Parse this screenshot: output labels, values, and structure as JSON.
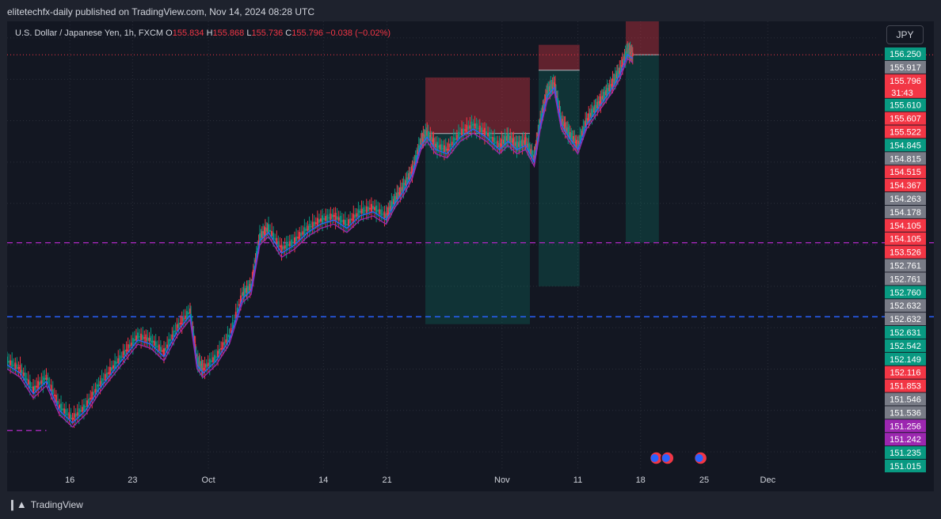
{
  "header": {
    "publisher": "elitetechfx-daily published on TradingView.com, Nov 14, 2024 08:28 UTC"
  },
  "legend": {
    "symbol": "U.S. Dollar / Japanese Yen, 1h, FXCM",
    "open_label": "O",
    "open": "155.834",
    "high_label": "H",
    "high": "155.868",
    "low_label": "L",
    "low": "155.736",
    "close_label": "C",
    "close": "155.796",
    "change": "−0.038 (−0.02%)"
  },
  "currency_button": "JPY",
  "footer": {
    "brand": "TradingView"
  },
  "colors": {
    "up": "#089981",
    "down": "#f23645",
    "purple": "#9c27b0",
    "blue": "#2962ff",
    "gray": "#787b86"
  },
  "chart_data": {
    "type": "line",
    "ylim": [
      150.8,
      156.2
    ],
    "x_ticks": [
      {
        "label": "16",
        "pos": 0.072
      },
      {
        "label": "23",
        "pos": 0.144
      },
      {
        "label": "Oct",
        "pos": 0.231
      },
      {
        "label": "14",
        "pos": 0.363
      },
      {
        "label": "21",
        "pos": 0.436
      },
      {
        "label": "Nov",
        "pos": 0.568
      },
      {
        "label": "11",
        "pos": 0.655
      },
      {
        "label": "18",
        "pos": 0.727
      },
      {
        "label": "25",
        "pos": 0.8
      },
      {
        "label": "Dec",
        "pos": 0.873
      }
    ],
    "price_series": [
      [
        0.0,
        152.1
      ],
      [
        0.015,
        152.0
      ],
      [
        0.03,
        151.75
      ],
      [
        0.045,
        151.9
      ],
      [
        0.06,
        151.55
      ],
      [
        0.075,
        151.4
      ],
      [
        0.09,
        151.55
      ],
      [
        0.105,
        151.8
      ],
      [
        0.12,
        152.0
      ],
      [
        0.135,
        152.2
      ],
      [
        0.15,
        152.4
      ],
      [
        0.165,
        152.35
      ],
      [
        0.18,
        152.2
      ],
      [
        0.195,
        152.5
      ],
      [
        0.21,
        152.7
      ],
      [
        0.218,
        152.1
      ],
      [
        0.225,
        152.0
      ],
      [
        0.24,
        152.15
      ],
      [
        0.255,
        152.4
      ],
      [
        0.27,
        152.9
      ],
      [
        0.28,
        153.0
      ],
      [
        0.29,
        153.6
      ],
      [
        0.3,
        153.7
      ],
      [
        0.315,
        153.45
      ],
      [
        0.33,
        153.55
      ],
      [
        0.345,
        153.7
      ],
      [
        0.36,
        153.8
      ],
      [
        0.375,
        153.85
      ],
      [
        0.39,
        153.75
      ],
      [
        0.405,
        153.9
      ],
      [
        0.42,
        153.95
      ],
      [
        0.435,
        153.85
      ],
      [
        0.445,
        154.05
      ],
      [
        0.455,
        154.2
      ],
      [
        0.465,
        154.4
      ],
      [
        0.475,
        154.75
      ],
      [
        0.482,
        154.85
      ],
      [
        0.492,
        154.7
      ],
      [
        0.505,
        154.65
      ],
      [
        0.52,
        154.85
      ],
      [
        0.535,
        154.95
      ],
      [
        0.55,
        154.85
      ],
      [
        0.565,
        154.7
      ],
      [
        0.575,
        154.8
      ],
      [
        0.585,
        154.7
      ],
      [
        0.595,
        154.75
      ],
      [
        0.605,
        154.55
      ],
      [
        0.612,
        155.0
      ],
      [
        0.62,
        155.35
      ],
      [
        0.628,
        155.45
      ],
      [
        0.636,
        155.0
      ],
      [
        0.645,
        154.85
      ],
      [
        0.655,
        154.7
      ],
      [
        0.665,
        155.0
      ],
      [
        0.675,
        155.15
      ],
      [
        0.685,
        155.3
      ],
      [
        0.695,
        155.45
      ],
      [
        0.703,
        155.6
      ],
      [
        0.712,
        155.85
      ],
      [
        0.718,
        155.8
      ]
    ],
    "horizontal_levels": [
      {
        "price": 155.796,
        "color": "#f23645",
        "style": "dotted"
      },
      {
        "price": 153.526,
        "color": "#9c27b0",
        "style": "dashed"
      },
      {
        "price": 152.632,
        "color": "#2962ff",
        "style": "dashed"
      },
      {
        "price": 151.256,
        "color": "#9c27b0",
        "style": "dashed",
        "x_end": 0.045
      }
    ],
    "positions": [
      {
        "x0": 0.48,
        "x1": 0.6,
        "entry": 154.845,
        "stop": 155.522,
        "target": 152.542
      },
      {
        "x0": 0.61,
        "x1": 0.657,
        "entry": 155.61,
        "stop": 155.917,
        "target": 153.0
      },
      {
        "x0": 0.71,
        "x1": 0.748,
        "entry": 155.796,
        "stop": 156.25,
        "target": 153.526
      }
    ],
    "price_labels": [
      {
        "text": "156.250",
        "color": "#089981"
      },
      {
        "text": "155.917",
        "color": "#787b86"
      },
      {
        "text": "155.796",
        "color": "#f23645",
        "sub": "31:43"
      },
      {
        "text": "155.610",
        "color": "#089981"
      },
      {
        "text": "155.607",
        "color": "#f23645"
      },
      {
        "text": "155.522",
        "color": "#f23645"
      },
      {
        "text": "154.845",
        "color": "#089981"
      },
      {
        "text": "154.815",
        "color": "#787b86"
      },
      {
        "text": "154.515",
        "color": "#f23645"
      },
      {
        "text": "154.367",
        "color": "#f23645"
      },
      {
        "text": "154.263",
        "color": "#787b86"
      },
      {
        "text": "154.178",
        "color": "#787b86"
      },
      {
        "text": "154.105",
        "color": "#f23645"
      },
      {
        "text": "154.105",
        "color": "#f23645"
      },
      {
        "text": "153.526",
        "color": "#f23645"
      },
      {
        "text": "152.761",
        "color": "#787b86"
      },
      {
        "text": "152.761",
        "color": "#787b86"
      },
      {
        "text": "152.760",
        "color": "#089981"
      },
      {
        "text": "152.632",
        "color": "#787b86"
      },
      {
        "text": "152.632",
        "color": "#787b86"
      },
      {
        "text": "152.631",
        "color": "#089981"
      },
      {
        "text": "152.542",
        "color": "#089981"
      },
      {
        "text": "152.149",
        "color": "#089981"
      },
      {
        "text": "152.116",
        "color": "#f23645"
      },
      {
        "text": "151.853",
        "color": "#f23645"
      },
      {
        "text": "151.546",
        "color": "#787b86"
      },
      {
        "text": "151.536",
        "color": "#787b86"
      },
      {
        "text": "151.256",
        "color": "#9c27b0"
      },
      {
        "text": "151.242",
        "color": "#9c27b0"
      },
      {
        "text": "151.235",
        "color": "#089981"
      },
      {
        "text": "151.015",
        "color": "#089981"
      }
    ]
  }
}
